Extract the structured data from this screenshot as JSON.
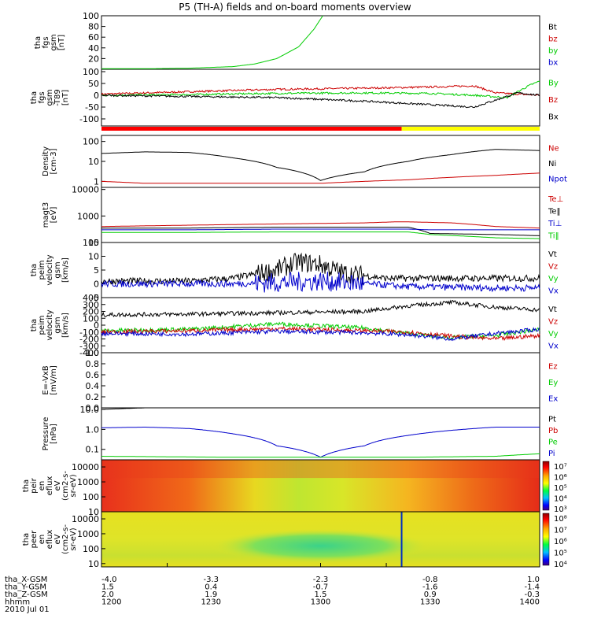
{
  "chart_data": {
    "type": "line",
    "title": "P5 (TH-A) fields and on-board moments overview",
    "date_label": "2010 Jul 01",
    "footer": {
      "rows": [
        {
          "label": "tha_X-GSM",
          "values": [
            "-4.0",
            "-3.3",
            "-2.3",
            "-0.8",
            "1.0"
          ]
        },
        {
          "label": "tha_Y-GSM",
          "values": [
            "1.5",
            "0.4",
            "-0.7",
            "-1.6",
            "-1.4"
          ]
        },
        {
          "label": "tha_Z-GSM",
          "values": [
            "2.0",
            "1.9",
            "1.5",
            "0.9",
            "-0.3"
          ]
        },
        {
          "label": "hhmm",
          "values": [
            "1200",
            "1230",
            "1300",
            "1330",
            "1400"
          ]
        }
      ]
    },
    "panels": [
      {
        "id": "fgs",
        "ylabel": [
          "tha",
          "fgs",
          "gsm",
          "[nT]"
        ],
        "scale": "linear",
        "ylim": [
          0,
          100
        ],
        "yticks": [
          "100",
          "80",
          "60",
          "40",
          "20"
        ],
        "legend": [
          {
            "name": "Bt",
            "color": "#000000"
          },
          {
            "name": "bz",
            "color": "#cc0000"
          },
          {
            "name": "by",
            "color": "#00cc00"
          },
          {
            "name": "bx",
            "color": "#0000cc"
          }
        ]
      },
      {
        "id": "fgl",
        "ylabel": [
          "tha",
          "fgs",
          "gsm",
          "-T89",
          "[nT]"
        ],
        "scale": "linear",
        "ylim": [
          -130,
          110
        ],
        "yticks": [
          "100",
          "50",
          "0",
          "-50",
          "-100"
        ],
        "legend": [
          {
            "name": "By",
            "color": "#00cc00"
          },
          {
            "name": "Bz",
            "color": "#cc0000"
          },
          {
            "name": "Bx",
            "color": "#000000"
          }
        ]
      },
      {
        "id": "density",
        "ylabel": [
          "Density",
          "[cm-3]"
        ],
        "scale": "log",
        "ylim": [
          0.5,
          200
        ],
        "yticks": [
          "100",
          "10",
          "1"
        ],
        "legend": [
          {
            "name": "Ne",
            "color": "#cc0000"
          },
          {
            "name": "Ni",
            "color": "#000000"
          },
          {
            "name": "Npot",
            "color": "#0000cc"
          }
        ]
      },
      {
        "id": "temperature",
        "ylabel": [
          "magt3",
          "[eV]"
        ],
        "scale": "log",
        "ylim": [
          100,
          12000
        ],
        "yticks": [
          "10000",
          "1000",
          "100"
        ],
        "legend": [
          {
            "name": "Te⊥",
            "color": "#cc0000"
          },
          {
            "name": "Te‖",
            "color": "#000000"
          },
          {
            "name": "Ti⊥",
            "color": "#0000cc"
          },
          {
            "name": "Ti‖",
            "color": "#00cc00"
          }
        ]
      },
      {
        "id": "vel_e",
        "ylabel": [
          "tha",
          "peim",
          "velocity",
          "gsm",
          "[km/s]"
        ],
        "scale": "linear",
        "ylim": [
          -5,
          15
        ],
        "yticks": [
          "15",
          "10",
          "5",
          "0",
          "-5"
        ],
        "legend": [
          {
            "name": "Vt",
            "color": "#000000"
          },
          {
            "name": "Vz",
            "color": "#cc0000"
          },
          {
            "name": "Vy",
            "color": "#00cc00"
          },
          {
            "name": "Vx",
            "color": "#0000cc"
          }
        ]
      },
      {
        "id": "vel_i",
        "ylabel": [
          "tha",
          "peim",
          "velocity",
          "gsm",
          "[km/s]"
        ],
        "scale": "linear",
        "ylim": [
          -400,
          400
        ],
        "yticks": [
          "400",
          "300",
          "200",
          "100",
          "0",
          "-100",
          "-200",
          "-300",
          "-400"
        ],
        "legend": [
          {
            "name": "Vt",
            "color": "#000000"
          },
          {
            "name": "Vz",
            "color": "#cc0000"
          },
          {
            "name": "Vy",
            "color": "#00cc00"
          },
          {
            "name": "Vx",
            "color": "#0000cc"
          }
        ]
      },
      {
        "id": "efield",
        "ylabel": [
          "E=-VxB",
          "[mV/m]"
        ],
        "scale": "linear",
        "ylim": [
          0,
          1
        ],
        "yticks": [
          "1.0",
          "0.8",
          "0.6",
          "0.4",
          "0.2",
          "0.0"
        ],
        "legend": [
          {
            "name": "Ez",
            "color": "#cc0000"
          },
          {
            "name": "Ey",
            "color": "#00cc00"
          },
          {
            "name": "Ex",
            "color": "#0000cc"
          }
        ]
      },
      {
        "id": "pressure",
        "ylabel": [
          "Pressure",
          "[nPa]"
        ],
        "scale": "log",
        "ylim": [
          0.03,
          12
        ],
        "yticks": [
          "10.0",
          "1.0",
          "0.1"
        ],
        "legend": [
          {
            "name": "Pt",
            "color": "#000000"
          },
          {
            "name": "Pb",
            "color": "#cc0000"
          },
          {
            "name": "Pe",
            "color": "#00cc00"
          },
          {
            "name": "Pi",
            "color": "#0000cc"
          }
        ]
      },
      {
        "id": "ion_spec",
        "ylabel": [
          "tha",
          "peir",
          "en",
          "eflux",
          "eV",
          "(cm2-s-",
          "sr-eV)"
        ],
        "scale": "log",
        "ylim": [
          10,
          30000
        ],
        "yticks": [
          "10000",
          "1000",
          "100",
          "10"
        ],
        "colorbar_labels": [
          "10⁷",
          "10⁶",
          "10⁵",
          "10⁴",
          "10³"
        ]
      },
      {
        "id": "ele_spec",
        "ylabel": [
          "tha",
          "peer",
          "en",
          "eflux",
          "eV",
          "(cm2-s-",
          "sr-eV)"
        ],
        "scale": "log",
        "ylim": [
          6,
          30000
        ],
        "yticks": [
          "10000",
          "1000",
          "100",
          "10"
        ],
        "colorbar_labels": [
          "10⁸",
          "10⁷",
          "10⁶",
          "10⁵",
          "10⁴"
        ]
      }
    ],
    "series": [
      {
        "panel": "fgs",
        "name": "by",
        "x": [
          1200,
          1220,
          1240,
          1260,
          1270,
          1280,
          1290,
          1297,
          1301
        ],
        "y": [
          1,
          1,
          2,
          5,
          10,
          20,
          42,
          75,
          100
        ]
      },
      {
        "panel": "fgl",
        "name": "Bz",
        "x": [
          1200,
          1240,
          1280,
          1320,
          1350,
          1370,
          1380,
          1390,
          1400
        ],
        "y": [
          5,
          15,
          25,
          30,
          35,
          40,
          10,
          5,
          0
        ]
      },
      {
        "panel": "fgl",
        "name": "By",
        "x": [
          1200,
          1240,
          1280,
          1320,
          1350,
          1370,
          1385,
          1395,
          1400
        ],
        "y": [
          0,
          3,
          8,
          10,
          8,
          0,
          -10,
          40,
          60
        ]
      },
      {
        "panel": "fgl",
        "name": "Bx",
        "x": [
          1200,
          1240,
          1280,
          1320,
          1350,
          1370,
          1380,
          1390,
          1400
        ],
        "y": [
          0,
          -5,
          -10,
          -25,
          -40,
          -50,
          -20,
          10,
          0
        ]
      },
      {
        "panel": "density",
        "name": "Ni",
        "x": [
          1200,
          1220,
          1240,
          1260,
          1280,
          1300,
          1320,
          1340,
          1360,
          1380,
          1400
        ],
        "y": [
          25,
          30,
          28,
          15,
          5,
          1.1,
          3,
          10,
          22,
          40,
          35
        ]
      },
      {
        "panel": "density",
        "name": "Ne",
        "x": [
          1200,
          1220,
          1240,
          1260,
          1280,
          1300,
          1320,
          1340,
          1360,
          1380,
          1400
        ],
        "y": [
          1.0,
          0.8,
          0.8,
          0.8,
          0.8,
          0.8,
          1.0,
          1.2,
          1.6,
          2.0,
          2.6
        ]
      },
      {
        "panel": "temperature",
        "name": "Te⊥",
        "x": [
          1200,
          1240,
          1280,
          1320,
          1334,
          1340,
          1360,
          1380,
          1400
        ],
        "y": [
          400,
          450,
          500,
          550,
          600,
          600,
          550,
          400,
          350
        ]
      },
      {
        "panel": "temperature",
        "name": "Te‖",
        "x": [
          1200,
          1240,
          1280,
          1320,
          1340,
          1350,
          1380,
          1400
        ],
        "y": [
          350,
          350,
          380,
          380,
          380,
          220,
          200,
          180
        ]
      },
      {
        "panel": "temperature",
        "name": "Ti⊥",
        "x": [
          1200,
          1240,
          1280,
          1320,
          1340,
          1350,
          1380,
          1400
        ],
        "y": [
          300,
          300,
          320,
          320,
          320,
          300,
          300,
          300
        ]
      },
      {
        "panel": "temperature",
        "name": "Ti‖",
        "x": [
          1200,
          1240,
          1280,
          1320,
          1340,
          1350,
          1380,
          1400
        ],
        "y": [
          240,
          240,
          250,
          250,
          250,
          200,
          150,
          140
        ]
      },
      {
        "panel": "vel_e",
        "name": "Vt",
        "x": [
          1200,
          1240,
          1260,
          1280,
          1290,
          1300,
          1310,
          1330,
          1360,
          1400
        ],
        "y": [
          1,
          1,
          2,
          5,
          8,
          7,
          4,
          2,
          2,
          2
        ]
      },
      {
        "panel": "vel_e",
        "name": "Vx",
        "x": [
          1200,
          1260,
          1300,
          1340,
          1380,
          1400
        ],
        "y": [
          0,
          0,
          1,
          -1,
          -1.5,
          -1.5
        ]
      },
      {
        "panel": "vel_i",
        "name": "Vt",
        "x": [
          1200,
          1240,
          1280,
          1320,
          1340,
          1360,
          1380,
          1400
        ],
        "y": [
          150,
          160,
          180,
          200,
          280,
          330,
          260,
          220
        ]
      },
      {
        "panel": "vel_i",
        "name": "Vy",
        "x": [
          1200,
          1240,
          1280,
          1320,
          1340,
          1360,
          1380,
          1400
        ],
        "y": [
          -80,
          -60,
          20,
          -40,
          -120,
          -180,
          -150,
          -60
        ]
      },
      {
        "panel": "vel_i",
        "name": "Vz",
        "x": [
          1200,
          1240,
          1280,
          1320,
          1340,
          1360,
          1380,
          1400
        ],
        "y": [
          -100,
          -80,
          -50,
          -80,
          -100,
          -160,
          -200,
          -150
        ]
      },
      {
        "panel": "vel_i",
        "name": "Vx",
        "x": [
          1200,
          1240,
          1280,
          1320,
          1340,
          1360,
          1380,
          1400
        ],
        "y": [
          -120,
          -130,
          -90,
          -110,
          -140,
          -200,
          -120,
          -60
        ]
      },
      {
        "panel": "pressure",
        "name": "Pi",
        "x": [
          1200,
          1220,
          1240,
          1260,
          1280,
          1300,
          1320,
          1340,
          1360,
          1380,
          1400
        ],
        "y": [
          1.2,
          1.3,
          1.1,
          0.6,
          0.15,
          0.04,
          0.15,
          0.5,
          0.9,
          1.3,
          1.3
        ]
      },
      {
        "panel": "pressure",
        "name": "Pe",
        "x": [
          1200,
          1260,
          1300,
          1340,
          1380,
          1400
        ],
        "y": [
          0.045,
          0.04,
          0.04,
          0.04,
          0.045,
          0.06
        ]
      },
      {
        "panel": "pressure",
        "name": "Pt",
        "x": [
          1200,
          1210,
          1220
        ],
        "y": [
          10,
          11,
          12
        ]
      }
    ]
  }
}
